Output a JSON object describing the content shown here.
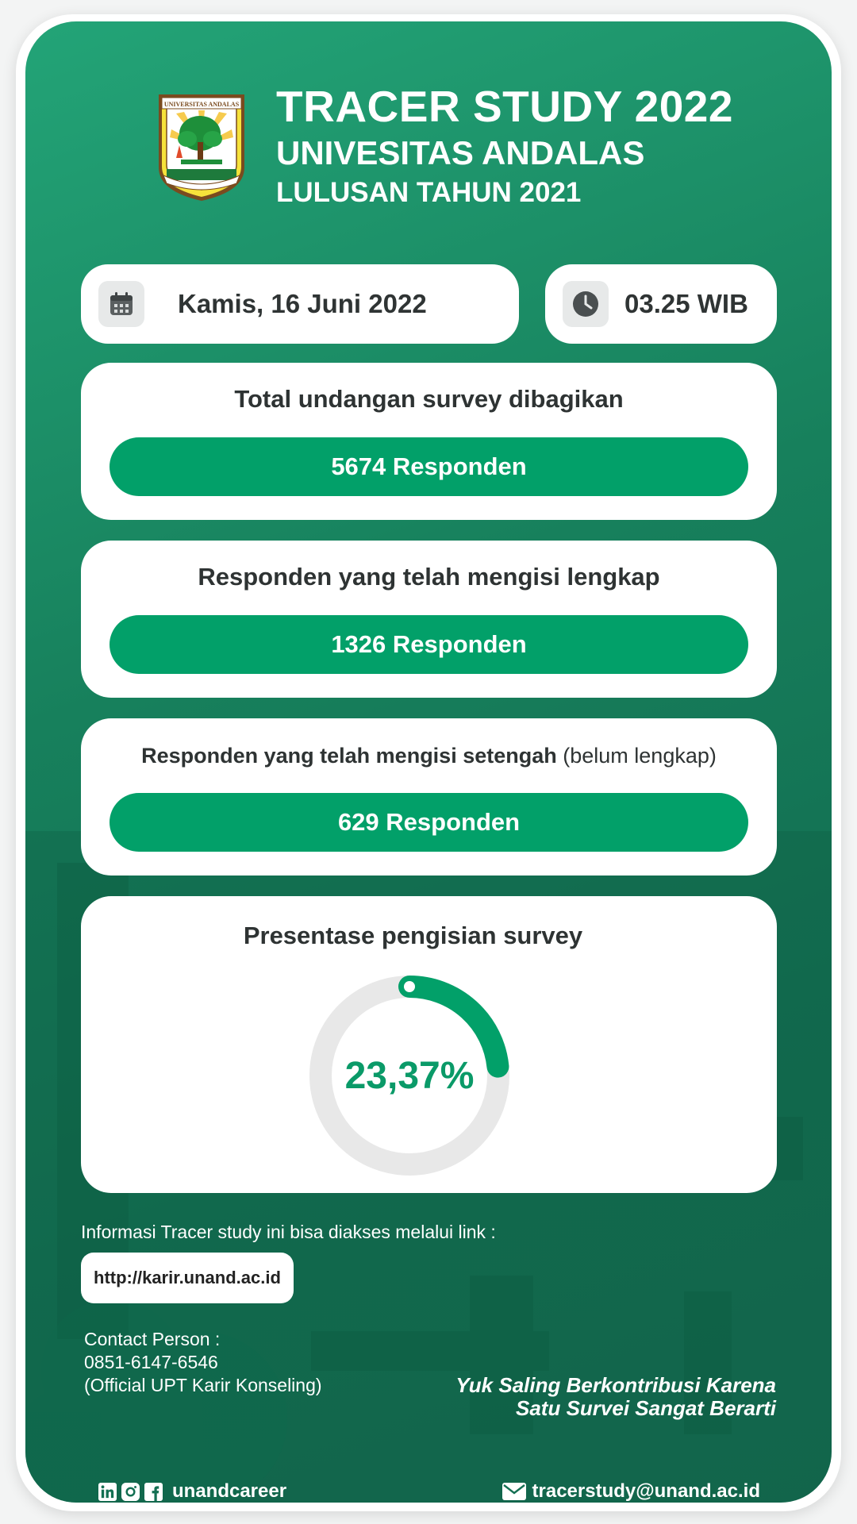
{
  "header": {
    "title": "TRACER STUDY 2022",
    "university": "UNIVESITAS ANDALAS",
    "cohort": "LULUSAN TAHUN 2021",
    "logo_text": "UNIVERSITAS ANDALAS"
  },
  "datetime": {
    "date": "Kamis, 16 Juni 2022",
    "time": "03.25 WIB",
    "date_icon": "calendar-icon",
    "time_icon": "clock-icon"
  },
  "stats": [
    {
      "title": "Total undangan survey dibagikan",
      "value": "5674 Responden"
    },
    {
      "title": "Responden yang telah mengisi lengkap",
      "value": "1326 Responden"
    },
    {
      "title": "Responden yang telah mengisi setengah",
      "title_note": "(belum lengkap)",
      "value": "629 Responden"
    }
  ],
  "progress": {
    "title": "Presentase pengisian survey",
    "label": "23,37%",
    "fraction": 0.2337
  },
  "info": {
    "text": "Informasi Tracer study ini bisa diakses melalui link :",
    "link": "http://karir.unand.ac.id"
  },
  "contact": {
    "label": "Contact Person :",
    "phone": "0851-6147-6546",
    "org": "(Official UPT Karir Konseling)"
  },
  "slogan": {
    "line1": "Yuk Saling Berkontribusi Karena",
    "line2": "Satu Survei Sangat Berarti"
  },
  "footer": {
    "social_icons": [
      "linkedin-icon",
      "instagram-icon",
      "facebook-icon"
    ],
    "handle": "unandcareer",
    "email_icon": "mail-icon",
    "email": "tracerstudy@unand.ac.id"
  },
  "colors": {
    "primary": "#02a069",
    "panel": "#17805c",
    "track": "#e8e8e8",
    "text_dark": "#2e3333"
  }
}
